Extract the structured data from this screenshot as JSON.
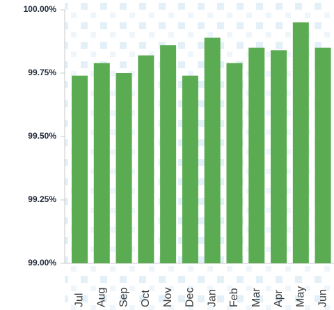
{
  "chart_data": {
    "type": "bar",
    "categories": [
      "Jul",
      "Aug",
      "Sep",
      "Oct",
      "Nov",
      "Dec",
      "Jan",
      "Feb",
      "Mar",
      "Apr",
      "May",
      "Jun"
    ],
    "values": [
      99.74,
      99.79,
      99.75,
      99.82,
      99.86,
      99.74,
      99.89,
      99.79,
      99.85,
      99.84,
      99.95,
      99.85
    ],
    "color": "#5aab52",
    "ylim": [
      99,
      100
    ],
    "yticks": [
      {
        "value": 99,
        "label": "99.00%"
      },
      {
        "value": 99.25,
        "label": "99.25%"
      },
      {
        "value": 99.5,
        "label": "99.50%"
      },
      {
        "value": 99.75,
        "label": "99.75%"
      },
      {
        "value": 100,
        "label": "100.00%"
      }
    ],
    "grid": false
  }
}
